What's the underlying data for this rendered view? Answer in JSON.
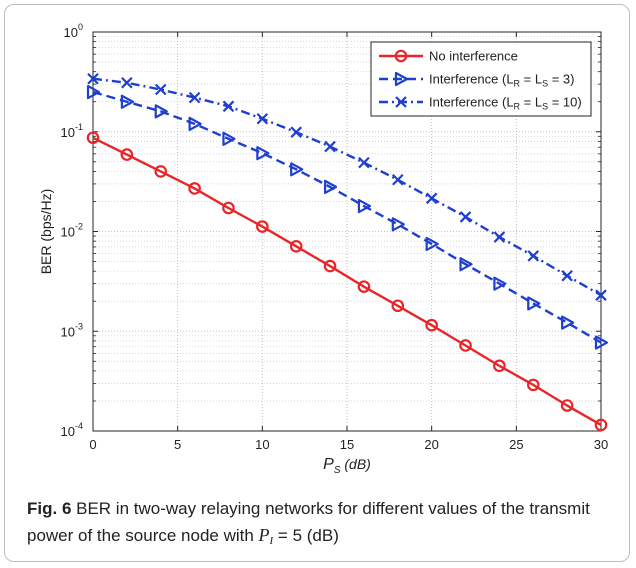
{
  "chart_data": {
    "type": "line",
    "xlabel": "P",
    "xlabel_sub": "S",
    "xlabel_unit": "(dB)",
    "ylabel": "BER (bps/Hz)",
    "xlim": [
      0,
      30
    ],
    "ylim": [
      0.0001,
      1
    ],
    "yscale": "log",
    "grid": true,
    "legend_position": "top-right",
    "x_ticks": [
      "0",
      "5",
      "10",
      "15",
      "20",
      "25",
      "30"
    ],
    "y_ticks": [
      {
        "base": "10",
        "exp": "0"
      },
      {
        "base": "10",
        "exp": "-1"
      },
      {
        "base": "10",
        "exp": "-2"
      },
      {
        "base": "10",
        "exp": "-3"
      },
      {
        "base": "10",
        "exp": "-4"
      }
    ],
    "x": [
      0,
      2,
      4,
      6,
      8,
      10,
      12,
      14,
      16,
      18,
      20,
      22,
      24,
      26,
      28,
      30
    ],
    "series": [
      {
        "name": "No interference",
        "color": "#e8262a",
        "marker": "circle",
        "dash": "solid",
        "values": [
          0.087,
          0.059,
          0.04,
          0.027,
          0.0172,
          0.0112,
          0.0071,
          0.0045,
          0.0028,
          0.0018,
          0.00115,
          0.00072,
          0.00045,
          0.00029,
          0.00018,
          0.000115
        ]
      },
      {
        "name": "Interference (L",
        "name_sub1": "R",
        "name_mid": " = L",
        "name_sub2": "S",
        "name_end": " = 3)",
        "color": "#1f3fcf",
        "marker": "triangle-right",
        "dash": "dashed",
        "values": [
          0.25,
          0.2,
          0.16,
          0.12,
          0.085,
          0.061,
          0.042,
          0.028,
          0.018,
          0.0118,
          0.0075,
          0.0047,
          0.003,
          0.0019,
          0.00122,
          0.00077
        ]
      },
      {
        "name": "Interference (L",
        "name_sub1": "R",
        "name_mid": " = L",
        "name_sub2": "S",
        "name_end": " = 10)",
        "color": "#1f3fcf",
        "marker": "x",
        "dash": "dashdot",
        "values": [
          0.34,
          0.31,
          0.265,
          0.22,
          0.18,
          0.135,
          0.099,
          0.071,
          0.049,
          0.033,
          0.0215,
          0.014,
          0.0088,
          0.0057,
          0.0036,
          0.0023
        ]
      }
    ]
  },
  "caption": {
    "label": "Fig. 6",
    "text1": " BER in two-way relaying networks for different values of the transmit power of the source node with ",
    "math_var": "P",
    "math_sub": "I",
    "math_eq": " = 5",
    "text2": " (dB)"
  }
}
